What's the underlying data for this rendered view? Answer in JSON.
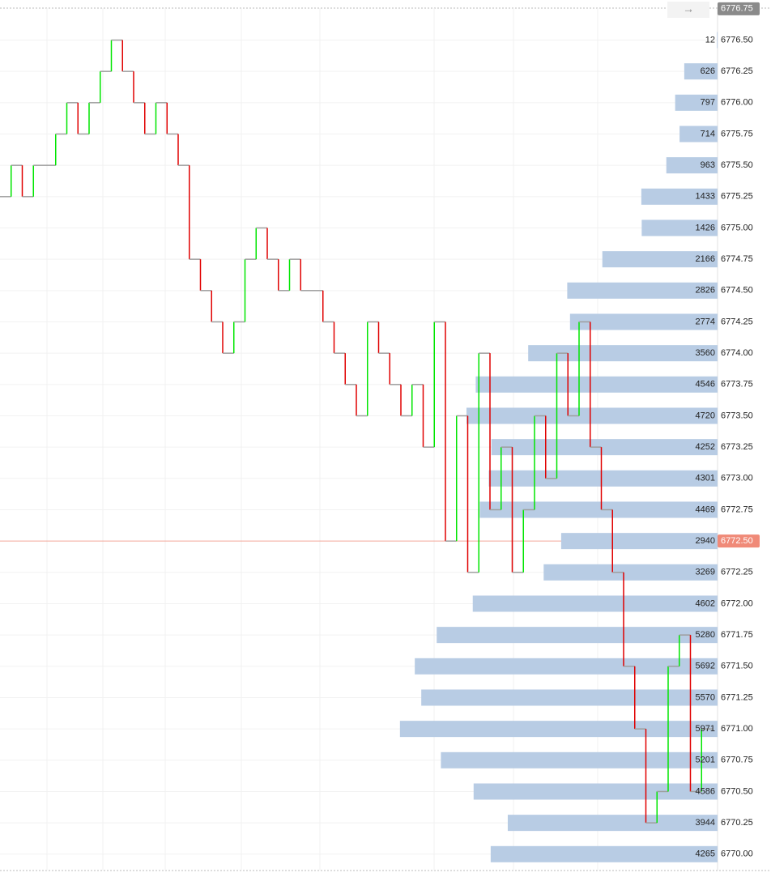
{
  "chart_data": {
    "type": "volume-profile",
    "ylim": [
      6769.85,
      6776.82
    ],
    "yticks": [
      {
        "value": 6770,
        "label": "6770.00"
      },
      {
        "value": 6770.25,
        "label": "6770.25"
      },
      {
        "value": 6770.5,
        "label": "6770.50"
      },
      {
        "value": 6770.75,
        "label": "6770.75"
      },
      {
        "value": 6771,
        "label": "6771.00"
      },
      {
        "value": 6771.25,
        "label": "6771.25"
      },
      {
        "value": 6771.5,
        "label": "6771.50"
      },
      {
        "value": 6771.75,
        "label": "6771.75"
      },
      {
        "value": 6772,
        "label": "6772.00"
      },
      {
        "value": 6772.25,
        "label": "6772.25"
      },
      {
        "value": 6772.75,
        "label": "6772.75"
      },
      {
        "value": 6773,
        "label": "6773.00"
      },
      {
        "value": 6773.25,
        "label": "6773.25"
      },
      {
        "value": 6773.5,
        "label": "6773.50"
      },
      {
        "value": 6773.75,
        "label": "6773.75"
      },
      {
        "value": 6774,
        "label": "6774.00"
      },
      {
        "value": 6774.25,
        "label": "6774.25"
      },
      {
        "value": 6774.5,
        "label": "6774.50"
      },
      {
        "value": 6774.75,
        "label": "6774.75"
      },
      {
        "value": 6775,
        "label": "6775.00"
      },
      {
        "value": 6775.25,
        "label": "6775.25"
      },
      {
        "value": 6775.5,
        "label": "6775.50"
      },
      {
        "value": 6775.75,
        "label": "6775.75"
      },
      {
        "value": 6776,
        "label": "6776.00"
      },
      {
        "value": 6776.25,
        "label": "6776.25"
      },
      {
        "value": 6776.5,
        "label": "6776.50"
      }
    ],
    "top_tick": {
      "value": 6776.75,
      "label": "6776.75"
    },
    "last_price": {
      "value": 6772.5,
      "label": "6772.50"
    },
    "xlim": [
      0,
      13490
    ],
    "profile": {
      "color": "#b8cce4",
      "levels": [
        6776.5,
        6776.25,
        6776,
        6775.75,
        6775.5,
        6775.25,
        6775,
        6774.75,
        6774.5,
        6774.25,
        6774,
        6773.75,
        6773.5,
        6773.25,
        6773,
        6772.75,
        6772.5,
        6772.25,
        6772,
        6771.75,
        6771.5,
        6771.25,
        6771,
        6770.75,
        6770.5,
        6770.25,
        6770
      ],
      "volumes": [
        12,
        626,
        797,
        714,
        963,
        1433,
        1426,
        2166,
        2826,
        2774,
        3560,
        4546,
        4720,
        4252,
        4301,
        4469,
        2940,
        3269,
        4602,
        5280,
        5692,
        5570,
        5971,
        5201,
        4586,
        3944,
        4265
      ]
    },
    "price_path": {
      "up_color": "#00e600",
      "down_color": "#e00000",
      "flat_color": "#9e9e9e",
      "values": [
        6775.25,
        6775.5,
        6775.25,
        6775.5,
        6775.5,
        6775.75,
        6776,
        6775.75,
        6776,
        6776.25,
        6776.5,
        6776.25,
        6776,
        6775.75,
        6776,
        6775.75,
        6775.5,
        6774.75,
        6774.5,
        6774.25,
        6774,
        6774.25,
        6774.75,
        6775,
        6774.75,
        6774.5,
        6774.75,
        6774.5,
        6774.5,
        6774.25,
        6774,
        6773.75,
        6773.5,
        6774.25,
        6774,
        6773.75,
        6773.5,
        6773.75,
        6773.25,
        6774.25,
        6772.5,
        6773.5,
        6772.25,
        6774,
        6772.75,
        6773.25,
        6772.25,
        6772.75,
        6773.5,
        6773,
        6774,
        6773.5,
        6774.25,
        6773.25,
        6772.75,
        6772.25,
        6771.5,
        6771,
        6770.25,
        6770.5,
        6771.5,
        6771.75,
        6770.5,
        6771
      ]
    }
  }
}
